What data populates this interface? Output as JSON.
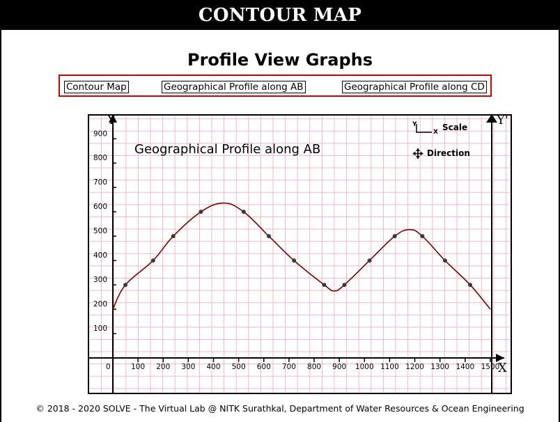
{
  "header": {
    "title": "CONTOUR MAP"
  },
  "page": {
    "title": "Profile View Graphs"
  },
  "nav": {
    "contour_map": "Contour Map",
    "profile_ab": "Geographical Profile along AB",
    "profile_cd": "Geographical Profile along CD"
  },
  "graph": {
    "heading": "Geographical Profile along AB",
    "y_axis_label": "Y",
    "y_prime_label": "Y'",
    "x_axis_label": "X",
    "legend_scale": "Scale",
    "legend_scale_y": "Y",
    "legend_scale_x": "X",
    "legend_direction": "Direction",
    "colors": {
      "grid": "#f2b8c6",
      "curve": "#7a0000",
      "point": "#3a3a3a"
    }
  },
  "chart_data": {
    "type": "line",
    "title": "Geographical Profile along AB",
    "xlabel": "X",
    "ylabel": "Y",
    "xlim": [
      0,
      1500
    ],
    "ylim": [
      0,
      900
    ],
    "x_ticks": [
      "0",
      "100",
      "200",
      "300",
      "400",
      "500",
      "600",
      "700",
      "800",
      "900",
      "1000",
      "1100",
      "1200",
      "1300",
      "1400",
      "1500"
    ],
    "y_ticks": [
      "100",
      "200",
      "300",
      "400",
      "500",
      "600",
      "700",
      "800",
      "900"
    ],
    "grid": true,
    "series": [
      {
        "points": [
          [
            0,
            200
          ],
          [
            50,
            300
          ],
          [
            160,
            400
          ],
          [
            240,
            500
          ],
          [
            350,
            600
          ],
          [
            520,
            600
          ],
          [
            620,
            500
          ],
          [
            720,
            400
          ],
          [
            840,
            300
          ],
          [
            920,
            300
          ],
          [
            1020,
            400
          ],
          [
            1120,
            500
          ],
          [
            1230,
            500
          ],
          [
            1320,
            400
          ],
          [
            1420,
            300
          ],
          [
            1500,
            200
          ]
        ],
        "curve_extrema": [
          [
            440,
            636
          ],
          [
            880,
            275
          ],
          [
            1180,
            527
          ]
        ]
      }
    ]
  },
  "footer": {
    "text": "© 2018 - 2020 SOLVE - The Virtual Lab @ NITK Surathkal, Department of Water Resources & Ocean Engineering"
  }
}
